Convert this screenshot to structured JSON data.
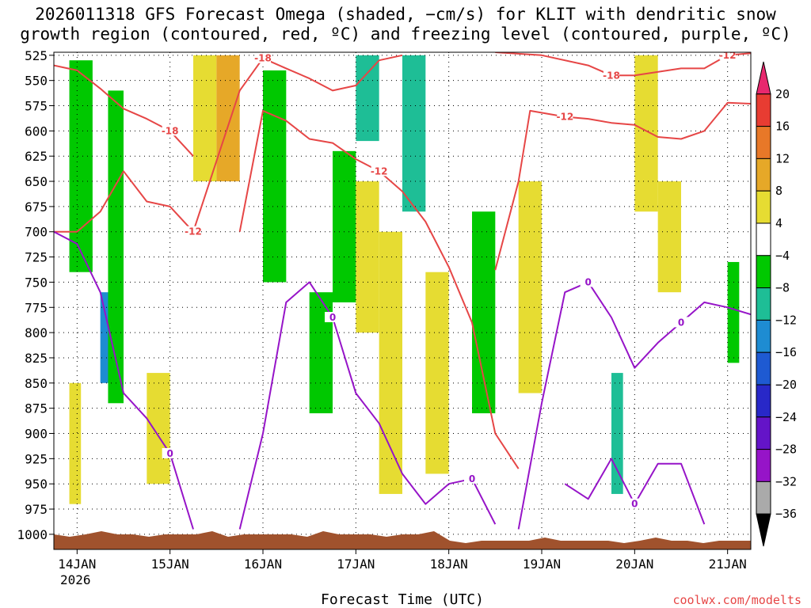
{
  "chart_data": {
    "type": "heatmap",
    "title_line1": "2026011318 GFS Forecast Omega (shaded, −cm/s) for KLIT with dendritic snow",
    "title_line2": "growth region (contoured, red, ºC) and freezing level (contoured, purple, ºC)",
    "xlabel": "Forecast Time (UTC)",
    "credit": "coolwx.com/modelts",
    "x_ticks": [
      "14JAN",
      "15JAN",
      "16JAN",
      "17JAN",
      "18JAN",
      "19JAN",
      "20JAN",
      "21JAN"
    ],
    "x_year_label": "2026",
    "xlim": [
      "2026-01-13T18",
      "2026-01-21T06"
    ],
    "y_ticks": [
      "525",
      "550",
      "575",
      "600",
      "625",
      "650",
      "675",
      "700",
      "725",
      "750",
      "775",
      "800",
      "825",
      "850",
      "875",
      "900",
      "925",
      "950",
      "975",
      "1000"
    ],
    "ylim": [
      522,
      1015
    ],
    "grid": true,
    "colorbar": {
      "labels": [
        "20",
        "16",
        "12",
        "8",
        "4",
        "−4",
        "−8",
        "−12",
        "−16",
        "−20",
        "−24",
        "−28",
        "−32",
        "−36"
      ],
      "colors": [
        "#e8286e",
        "#e83c32",
        "#e87828",
        "#e6a828",
        "#e6dc32",
        "#ffffff",
        "#00c800",
        "#1ebe96",
        "#1e8cd2",
        "#1e5ad2",
        "#2828c8",
        "#6414c8",
        "#9614c8",
        "#aaaaaa",
        "#000000"
      ]
    },
    "contour_labels": [
      "-18",
      "-18",
      "-12",
      "-12",
      "-18",
      "-12",
      "-12",
      "0",
      "0",
      "0",
      "0",
      "0",
      "0"
    ],
    "series": [
      {
        "color": "#e64646",
        "level": -18,
        "points": [
          [
            "2026-01-13T18",
            535
          ],
          [
            "2026-01-14T00",
            540
          ],
          [
            "2026-01-14T06",
            558
          ],
          [
            "2026-01-14T12",
            578
          ],
          [
            "2026-01-14T18",
            588
          ],
          [
            "2026-01-15T00",
            600
          ],
          [
            "2026-01-15T06",
            625
          ]
        ]
      },
      {
        "color": "#e64646",
        "level": -12,
        "points": [
          [
            "2026-01-13T18",
            700
          ],
          [
            "2026-01-14T00",
            700
          ],
          [
            "2026-01-14T06",
            680
          ],
          [
            "2026-01-14T12",
            640
          ],
          [
            "2026-01-14T18",
            670
          ],
          [
            "2026-01-15T00",
            675
          ],
          [
            "2026-01-15T06",
            700
          ]
        ]
      },
      {
        "color": "#e64646",
        "level": -18,
        "points": [
          [
            "2026-01-15T06",
            700
          ],
          [
            "2026-01-15T12",
            630
          ],
          [
            "2026-01-15T18",
            560
          ],
          [
            "2026-01-16T00",
            528
          ],
          [
            "2026-01-16T06",
            538
          ],
          [
            "2026-01-16T12",
            548
          ],
          [
            "2026-01-16T18",
            560
          ],
          [
            "2026-01-17T00",
            555
          ],
          [
            "2026-01-17T06",
            530
          ],
          [
            "2026-01-17T12",
            525
          ]
        ]
      },
      {
        "color": "#e64646",
        "level": -12,
        "points": [
          [
            "2026-01-15T18",
            700
          ],
          [
            "2026-01-16T00",
            580
          ],
          [
            "2026-01-16T06",
            590
          ],
          [
            "2026-01-16T12",
            608
          ],
          [
            "2026-01-16T18",
            612
          ],
          [
            "2026-01-17T00",
            628
          ],
          [
            "2026-01-17T06",
            640
          ],
          [
            "2026-01-17T12",
            660
          ],
          [
            "2026-01-17T18",
            690
          ],
          [
            "2026-01-18T00",
            735
          ],
          [
            "2026-01-18T06",
            790
          ],
          [
            "2026-01-18T12",
            900
          ],
          [
            "2026-01-18T18",
            935
          ]
        ]
      },
      {
        "color": "#e64646",
        "level": -12,
        "points": [
          [
            "2026-01-18T12",
            738
          ],
          [
            "2026-01-18T18",
            650
          ],
          [
            "2026-01-18T21",
            580
          ],
          [
            "2026-01-19T06",
            586
          ],
          [
            "2026-01-19T12",
            588
          ],
          [
            "2026-01-19T18",
            592
          ],
          [
            "2026-01-20T00",
            594
          ],
          [
            "2026-01-20T06",
            606
          ],
          [
            "2026-01-20T12",
            608
          ],
          [
            "2026-01-20T18",
            600
          ],
          [
            "2026-01-21T00",
            572
          ],
          [
            "2026-01-21T06",
            573
          ]
        ]
      },
      {
        "color": "#e64646",
        "level": -18,
        "points": [
          [
            "2026-01-18T12",
            522
          ],
          [
            "2026-01-19T00",
            525
          ],
          [
            "2026-01-19T12",
            535
          ],
          [
            "2026-01-19T18",
            545
          ],
          [
            "2026-01-20T00",
            545
          ],
          [
            "2026-01-20T12",
            538
          ],
          [
            "2026-01-20T18",
            538
          ],
          [
            "2026-01-21T00",
            525
          ],
          [
            "2026-01-21T06",
            523
          ]
        ]
      },
      {
        "color": "#9614c8",
        "level": 0,
        "points": [
          [
            "2026-01-13T18",
            700
          ],
          [
            "2026-01-14T00",
            712
          ],
          [
            "2026-01-14T06",
            760
          ],
          [
            "2026-01-14T12",
            860
          ],
          [
            "2026-01-14T18",
            885
          ],
          [
            "2026-01-15T00",
            920
          ],
          [
            "2026-01-15T06",
            995
          ]
        ]
      },
      {
        "color": "#9614c8",
        "level": 0,
        "points": [
          [
            "2026-01-15T18",
            995
          ],
          [
            "2026-01-16T00",
            900
          ],
          [
            "2026-01-16T06",
            770
          ],
          [
            "2026-01-16T12",
            750
          ],
          [
            "2026-01-16T18",
            785
          ],
          [
            "2026-01-17T00",
            860
          ],
          [
            "2026-01-17T06",
            890
          ],
          [
            "2026-01-17T12",
            940
          ],
          [
            "2026-01-17T18",
            970
          ],
          [
            "2026-01-18T00",
            950
          ],
          [
            "2026-01-18T06",
            945
          ],
          [
            "2026-01-18T12",
            990
          ]
        ]
      },
      {
        "color": "#9614c8",
        "level": 0,
        "points": [
          [
            "2026-01-18T18",
            995
          ],
          [
            "2026-01-19T00",
            870
          ],
          [
            "2026-01-19T06",
            760
          ],
          [
            "2026-01-19T12",
            750
          ],
          [
            "2026-01-19T18",
            785
          ],
          [
            "2026-01-20T00",
            835
          ],
          [
            "2026-01-20T06",
            810
          ],
          [
            "2026-01-20T12",
            790
          ],
          [
            "2026-01-20T18",
            770
          ],
          [
            "2026-01-21T00",
            775
          ],
          [
            "2026-01-21T06",
            782
          ]
        ]
      },
      {
        "color": "#9614c8",
        "level": 0,
        "points": [
          [
            "2026-01-19T06",
            950
          ],
          [
            "2026-01-19T12",
            965
          ],
          [
            "2026-01-19T18",
            925
          ],
          [
            "2026-01-20T00",
            970
          ],
          [
            "2026-01-20T06",
            930
          ],
          [
            "2026-01-20T12",
            930
          ],
          [
            "2026-01-20T18",
            990
          ]
        ]
      }
    ],
    "omega_shading": [
      {
        "t0": "2026-01-13T22",
        "t1": "2026-01-14T04",
        "p0": 530,
        "p1": 740,
        "value": -6
      },
      {
        "t0": "2026-01-14T06",
        "t1": "2026-01-14T09",
        "p0": 760,
        "p1": 850,
        "value": -12
      },
      {
        "t0": "2026-01-14T08",
        "t1": "2026-01-14T12",
        "p0": 560,
        "p1": 870,
        "value": -6
      },
      {
        "t0": "2026-01-13T22",
        "t1": "2026-01-14T01",
        "p0": 850,
        "p1": 970,
        "value": 5
      },
      {
        "t0": "2026-01-14T18",
        "t1": "2026-01-15T00",
        "p0": 840,
        "p1": 950,
        "value": 5
      },
      {
        "t0": "2026-01-15T06",
        "t1": "2026-01-15T12",
        "p0": 525,
        "p1": 650,
        "value": 6
      },
      {
        "t0": "2026-01-15T12",
        "t1": "2026-01-15T18",
        "p0": 525,
        "p1": 650,
        "value": 8
      },
      {
        "t0": "2026-01-16T00",
        "t1": "2026-01-16T06",
        "p0": 540,
        "p1": 750,
        "value": -6
      },
      {
        "t0": "2026-01-16T12",
        "t1": "2026-01-16T18",
        "p0": 760,
        "p1": 880,
        "value": -6
      },
      {
        "t0": "2026-01-16T18",
        "t1": "2026-01-17T00",
        "p0": 620,
        "p1": 770,
        "value": -6
      },
      {
        "t0": "2026-01-17T00",
        "t1": "2026-01-17T06",
        "p0": 650,
        "p1": 800,
        "value": 6
      },
      {
        "t0": "2026-01-17T06",
        "t1": "2026-01-17T12",
        "p0": 700,
        "p1": 960,
        "value": 5
      },
      {
        "t0": "2026-01-17T00",
        "t1": "2026-01-17T06",
        "p0": 525,
        "p1": 610,
        "value": -10
      },
      {
        "t0": "2026-01-17T12",
        "t1": "2026-01-17T18",
        "p0": 525,
        "p1": 680,
        "value": -8
      },
      {
        "t0": "2026-01-17T18",
        "t1": "2026-01-18T00",
        "p0": 740,
        "p1": 940,
        "value": 6
      },
      {
        "t0": "2026-01-18T06",
        "t1": "2026-01-18T12",
        "p0": 680,
        "p1": 880,
        "value": -6
      },
      {
        "t0": "2026-01-18T18",
        "t1": "2026-01-18T24",
        "p0": 650,
        "p1": 860,
        "value": 5
      },
      {
        "t0": "2026-01-19T18",
        "t1": "2026-01-19T21",
        "p0": 840,
        "p1": 960,
        "value": -10
      },
      {
        "t0": "2026-01-20T00",
        "t1": "2026-01-20T06",
        "p0": 525,
        "p1": 680,
        "value": 5
      },
      {
        "t0": "2026-01-20T06",
        "t1": "2026-01-20T12",
        "p0": 650,
        "p1": 760,
        "value": 5
      },
      {
        "t0": "2026-01-21T00",
        "t1": "2026-01-21T03",
        "p0": 730,
        "p1": 830,
        "value": -6
      }
    ]
  }
}
